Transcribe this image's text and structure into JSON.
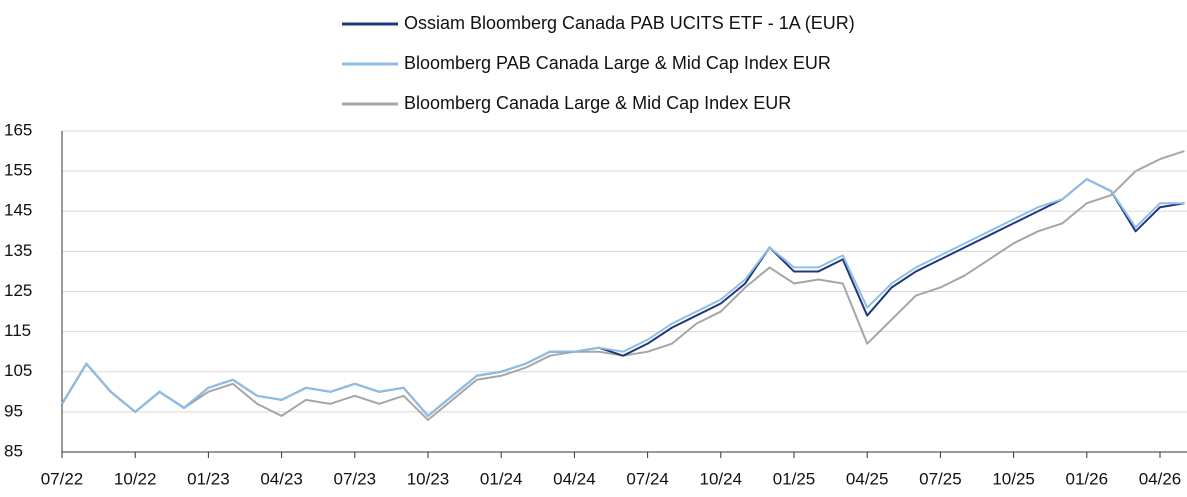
{
  "chart_data": {
    "type": "line",
    "categories": [
      "07/22",
      null,
      null,
      "10/22",
      null,
      null,
      "01/23",
      null,
      null,
      "04/23",
      null,
      null,
      "07/23",
      null,
      null,
      "10/23",
      null,
      null,
      "01/24",
      null,
      null,
      "04/24",
      null,
      null,
      "07/24",
      null,
      null,
      "10/24",
      null,
      null,
      "01/25",
      null,
      null,
      "04/25",
      null,
      null,
      "07/25",
      null,
      null,
      "10/25",
      null,
      null,
      "01/26",
      null,
      null,
      "04/26",
      null
    ],
    "series": [
      {
        "name": "Ossiam Bloomberg Canada PAB UCITS ETF - 1A (EUR)",
        "color": "#1f3a7a",
        "values": [
          97,
          107,
          100,
          95,
          100,
          96,
          101,
          103,
          99,
          98,
          101,
          100,
          102,
          100,
          101,
          94,
          99,
          104,
          105,
          107,
          110,
          110,
          111,
          109,
          112,
          116,
          119,
          122,
          127,
          136,
          130,
          130,
          133,
          119,
          126,
          130,
          133,
          136,
          139,
          142,
          145,
          148,
          153,
          150,
          140,
          146,
          147
        ]
      },
      {
        "name": "Bloomberg PAB Canada Large & Mid Cap Index EUR",
        "color": "#8fbfe6",
        "values": [
          97,
          107,
          100,
          95,
          100,
          96,
          101,
          103,
          99,
          98,
          101,
          100,
          102,
          100,
          101,
          94,
          99,
          104,
          105,
          107,
          110,
          110,
          111,
          110,
          113,
          117,
          120,
          123,
          128,
          136,
          131,
          131,
          134,
          121,
          127,
          131,
          134,
          137,
          140,
          143,
          146,
          148,
          153,
          150,
          141,
          147,
          147
        ]
      },
      {
        "name": "Bloomberg Canada Large & Mid Cap Index EUR",
        "color": "#a6a6a6",
        "values": [
          97,
          107,
          100,
          95,
          100,
          96,
          100,
          102,
          97,
          94,
          98,
          97,
          99,
          97,
          99,
          93,
          98,
          103,
          104,
          106,
          109,
          110,
          110,
          109,
          110,
          112,
          117,
          120,
          126,
          131,
          127,
          128,
          127,
          112,
          118,
          124,
          126,
          129,
          133,
          137,
          140,
          142,
          147,
          149,
          155,
          158,
          160
        ]
      }
    ],
    "ylim": [
      85,
      165
    ],
    "yticks": [
      85,
      95,
      105,
      115,
      125,
      135,
      145,
      155,
      165
    ],
    "grid": true
  }
}
